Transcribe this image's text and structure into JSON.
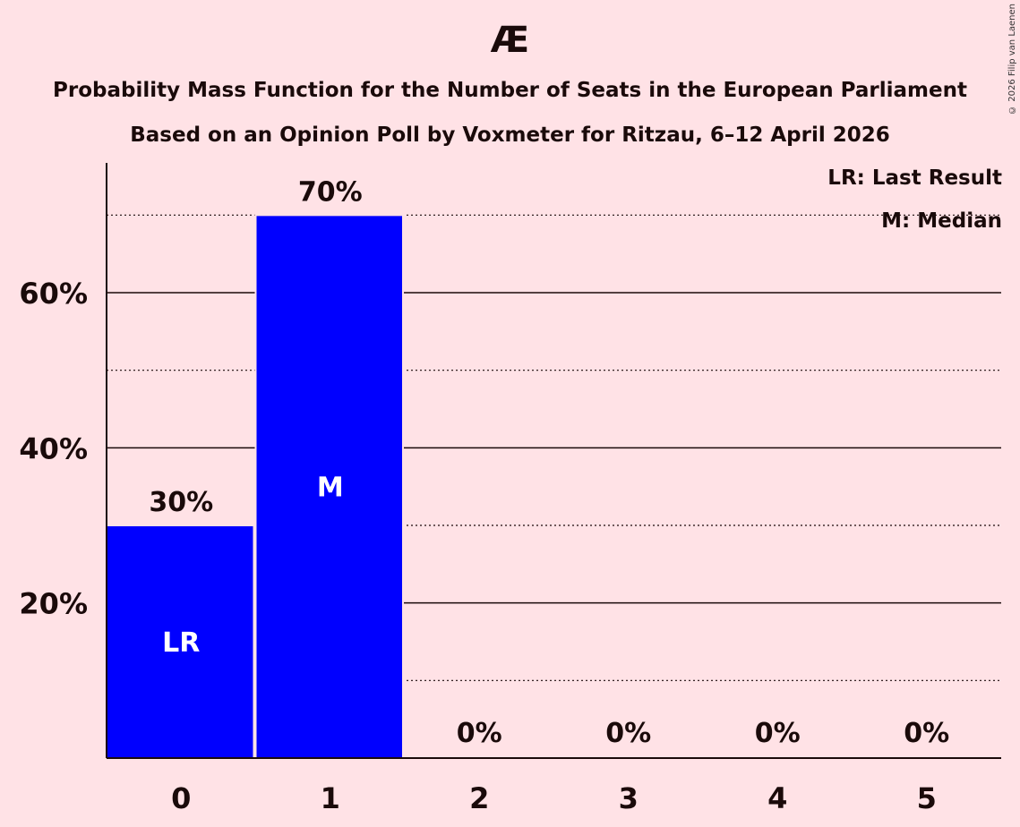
{
  "header": {
    "title": "Æ",
    "subtitle1": "Probability Mass Function for the Number of Seats in the European Parliament",
    "subtitle2": "Based on an Opinion Poll by Voxmeter for Ritzau, 6–12 April 2026",
    "copyright": "© 2026 Filip van Laenen"
  },
  "legend": {
    "lr": "LR: Last Result",
    "m": "M: Median"
  },
  "colors": {
    "background": "#ffe2e6",
    "bar": "#0000ff",
    "text": "#1a0a0a"
  },
  "chart_data": {
    "type": "bar",
    "title": "Æ",
    "subtitle": "Probability Mass Function for the Number of Seats in the European Parliament — Based on an Opinion Poll by Voxmeter for Ritzau, 6–12 April 2026",
    "categories": [
      "0",
      "1",
      "2",
      "3",
      "4",
      "5"
    ],
    "values": [
      30,
      70,
      0,
      0,
      0,
      0
    ],
    "value_labels": [
      "30%",
      "70%",
      "0%",
      "0%",
      "0%",
      "0%"
    ],
    "bar_annotations": [
      "LR",
      "M",
      "",
      "",
      "",
      ""
    ],
    "xlabel": "",
    "ylabel": "",
    "ylim": [
      0,
      76
    ],
    "yticks": [
      20,
      40,
      60
    ],
    "ytick_labels": [
      "20%",
      "40%",
      "60%"
    ],
    "minor_gridlines": [
      10,
      30,
      50,
      70
    ],
    "grid": true,
    "legend_position": "top-right",
    "legend": [
      "LR: Last Result",
      "M: Median"
    ]
  }
}
